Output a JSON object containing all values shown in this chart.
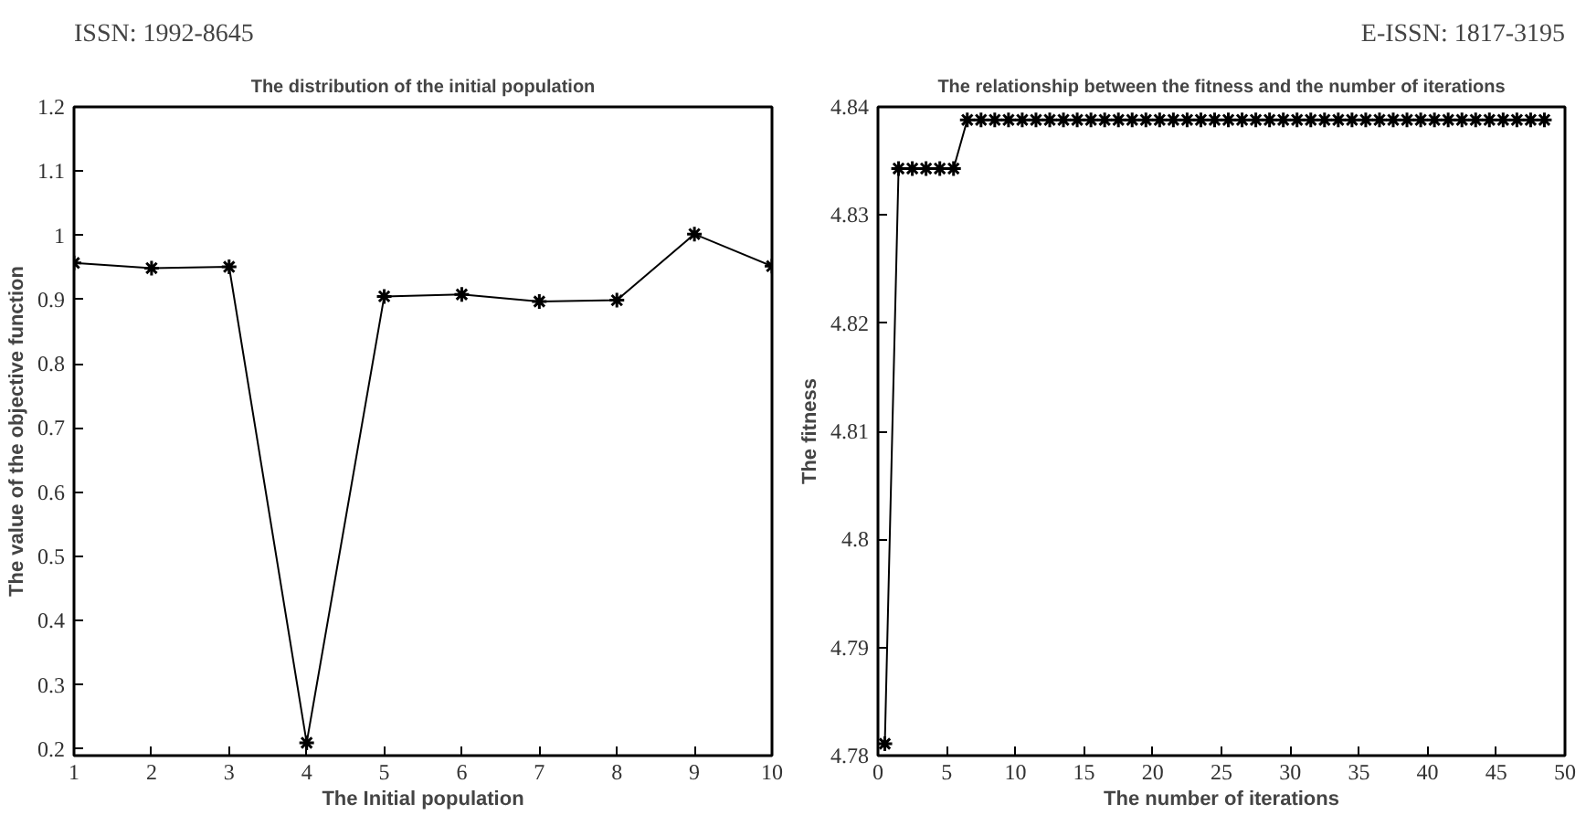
{
  "chart_data": [
    {
      "type": "line",
      "title": "The distribution of the initial population",
      "xlabel": "The Initial population",
      "ylabel": "The value of the objective function",
      "annotations": [
        "ISSN: 1992-8645"
      ],
      "x": [
        1,
        2,
        3,
        4,
        5,
        6,
        7,
        8,
        9,
        10
      ],
      "series": [
        {
          "color": "#000000",
          "values": [
            0.957,
            0.949,
            0.951,
            0.21,
            0.905,
            0.908,
            0.897,
            0.899,
            1.002,
            0.952
          ]
        }
      ],
      "xlim": [
        1,
        10
      ],
      "ylim": [
        0.19,
        1.2
      ],
      "xticks": [
        1,
        2,
        3,
        4,
        5,
        6,
        7,
        8,
        9,
        10
      ],
      "yticks": [
        0.2,
        0.3,
        0.4,
        0.5,
        0.6,
        0.7,
        0.8,
        0.9,
        1,
        1.1,
        1.2
      ],
      "grid": false,
      "marker": "cross",
      "line_style": "solid"
    },
    {
      "type": "line",
      "title": "The relationship between the fitness and the number of iterations",
      "xlabel": "The number of iterations",
      "ylabel": "The fitness",
      "annotations": [
        "E-ISSN: 1817-3195"
      ],
      "x": [
        0.5,
        1.5,
        2.5,
        3.5,
        4.5,
        5.5,
        6.5,
        7.5,
        8.5,
        9.5,
        10.5,
        11.5,
        12.5,
        13.5,
        14.5,
        15.5,
        16.5,
        17.5,
        18.5,
        19.5,
        20.5,
        21.5,
        22.5,
        23.5,
        24.5,
        25.5,
        26.5,
        27.5,
        28.5,
        29.5,
        30.5,
        31.5,
        32.5,
        33.5,
        34.5,
        35.5,
        36.5,
        37.5,
        38.5,
        39.5,
        40.5,
        41.5,
        42.5,
        43.5,
        44.5,
        45.5,
        46.5,
        47.5,
        48.5
      ],
      "series": [
        {
          "color": "#000000",
          "values": [
            4.7811,
            4.8343,
            4.8343,
            4.8343,
            4.8343,
            4.8343,
            4.8388,
            4.8388,
            4.8388,
            4.8388,
            4.8388,
            4.8388,
            4.8388,
            4.8388,
            4.8388,
            4.8388,
            4.8388,
            4.8388,
            4.8388,
            4.8388,
            4.8388,
            4.8388,
            4.8388,
            4.8388,
            4.8388,
            4.8388,
            4.8388,
            4.8388,
            4.8388,
            4.8388,
            4.8388,
            4.8388,
            4.8388,
            4.8388,
            4.8388,
            4.8388,
            4.8388,
            4.8388,
            4.8388,
            4.8388,
            4.8388,
            4.8388,
            4.8388,
            4.8388,
            4.8388,
            4.8388,
            4.8388,
            4.8388,
            4.8388
          ]
        }
      ],
      "xlim": [
        0,
        50
      ],
      "ylim": [
        4.78,
        4.84
      ],
      "xticks": [
        0,
        5,
        10,
        15,
        20,
        25,
        30,
        35,
        40,
        45,
        50
      ],
      "yticks": [
        4.78,
        4.79,
        4.8,
        4.81,
        4.82,
        4.83,
        4.84
      ],
      "grid": false,
      "marker": "cross",
      "line_style": "solid"
    }
  ]
}
